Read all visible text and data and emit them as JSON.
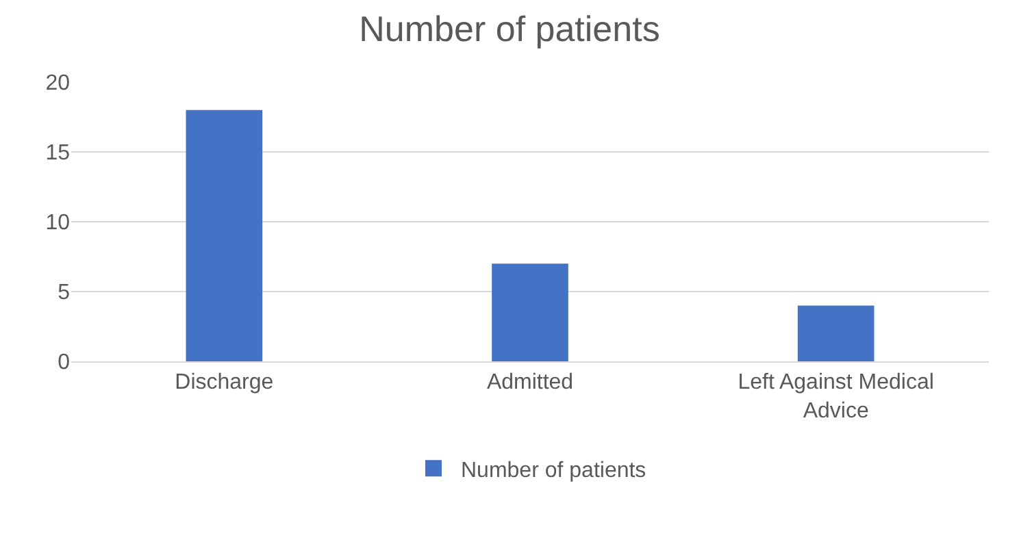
{
  "chart_data": {
    "type": "bar",
    "title": "Number of patients",
    "categories": [
      "Discharge",
      "Admitted",
      "Left Against Medical Advice"
    ],
    "series": [
      {
        "name": "Number of patients",
        "color": "#4472c4",
        "values": [
          18,
          7,
          4
        ]
      }
    ],
    "ylim": [
      0,
      20
    ],
    "yticks": [
      0,
      5,
      10,
      15,
      20
    ],
    "grid": "y",
    "legend": "bottom"
  }
}
